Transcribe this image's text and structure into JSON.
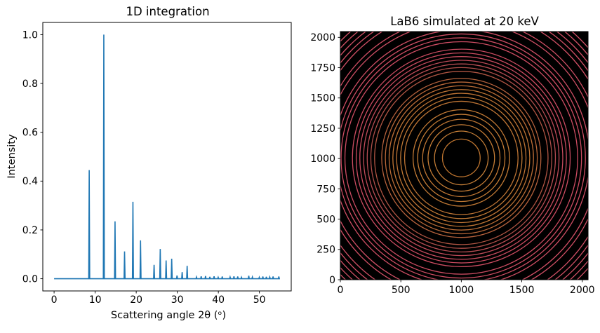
{
  "figure": {
    "background": "#ffffff",
    "text_color": "#000000"
  },
  "chart_data": [
    {
      "type": "line",
      "title": "1D integration",
      "xlabel": "Scattering angle 2θ (ᵒ)",
      "ylabel": "Intensity",
      "x_data_range": [
        0,
        55
      ],
      "xlim": [
        -2.75,
        57.75
      ],
      "ylim": [
        -0.05,
        1.05
      ],
      "xtick_values": [
        0,
        10,
        20,
        30,
        40,
        50
      ],
      "xtick_labels": [
        "0",
        "10",
        "20",
        "30",
        "40",
        "50"
      ],
      "ytick_values": [
        0.0,
        0.2,
        0.4,
        0.6,
        0.8,
        1.0
      ],
      "ytick_labels": [
        "0.0",
        "0.2",
        "0.4",
        "0.6",
        "0.8",
        "1.0"
      ],
      "grid": false,
      "line_color": "#1f77b4",
      "peaks_two_theta_intensity": [
        [
          8.55,
          0.445
        ],
        [
          12.11,
          1.0
        ],
        [
          14.84,
          0.235
        ],
        [
          17.16,
          0.112
        ],
        [
          19.2,
          0.315
        ],
        [
          21.05,
          0.157
        ],
        [
          24.35,
          0.057
        ],
        [
          25.85,
          0.122
        ],
        [
          27.28,
          0.075
        ],
        [
          28.64,
          0.082
        ],
        [
          29.94,
          0.013
        ],
        [
          31.19,
          0.027
        ],
        [
          32.4,
          0.053
        ],
        [
          34.67,
          0.007
        ],
        [
          35.82,
          0.01
        ],
        [
          36.88,
          0.011
        ],
        [
          37.93,
          0.008
        ],
        [
          38.96,
          0.01
        ],
        [
          39.96,
          0.006
        ],
        [
          40.95,
          0.009
        ],
        [
          42.86,
          0.007
        ],
        [
          43.8,
          0.01
        ],
        [
          44.72,
          0.009
        ],
        [
          45.63,
          0.006
        ],
        [
          47.41,
          0.012
        ],
        [
          48.29,
          0.007
        ],
        [
          49.97,
          0.006
        ],
        [
          50.84,
          0.009
        ],
        [
          51.69,
          0.008
        ],
        [
          52.52,
          0.007
        ],
        [
          53.33,
          0.009
        ],
        [
          54.73,
          0.009
        ]
      ]
    },
    {
      "type": "heatmap",
      "title": "LaB6 simulated at 20 keV",
      "extent": [
        0,
        2048,
        0,
        2048
      ],
      "xtick_values": [
        0,
        500,
        1000,
        1500,
        2000
      ],
      "xtick_labels": [
        "0",
        "500",
        "1000",
        "1500",
        "2000"
      ],
      "ytick_values": [
        0,
        250,
        500,
        750,
        1000,
        1250,
        1500,
        1750,
        2000
      ],
      "ytick_labels": [
        "0",
        "250",
        "500",
        "750",
        "1000",
        "1250",
        "1500",
        "1750",
        "2000"
      ],
      "background": "#000000",
      "beam_center": [
        1000,
        1005
      ],
      "rings_twotheta_radius_color": [
        [
          8.55,
          156,
          "#bd742f"
        ],
        [
          12.11,
          222,
          "#c88038"
        ],
        [
          14.84,
          275,
          "#c57d36"
        ],
        [
          17.16,
          320,
          "#c07734"
        ],
        [
          19.2,
          361,
          "#c57d36"
        ],
        [
          21.05,
          399,
          "#c27a35"
        ],
        [
          24.35,
          469,
          "#bd7434"
        ],
        [
          25.85,
          502,
          "#c27a36"
        ],
        [
          27.28,
          535,
          "#bd7334"
        ],
        [
          28.64,
          566,
          "#bf7535"
        ],
        [
          29.94,
          597,
          "#ba6c36"
        ],
        [
          31.19,
          628,
          "#b96839"
        ],
        [
          32.4,
          658,
          "#b5613c"
        ],
        [
          34.67,
          717,
          "#b05543"
        ],
        [
          35.82,
          748,
          "#ae4f4a"
        ],
        [
          36.88,
          778,
          "#b64d53"
        ],
        [
          37.93,
          808,
          "#bf4b59"
        ],
        [
          38.96,
          839,
          "#c84c5f"
        ],
        [
          39.96,
          869,
          "#cc4c61"
        ],
        [
          40.95,
          900,
          "#cc4c61"
        ],
        [
          42.86,
          962,
          "#ce4d63"
        ],
        [
          43.8,
          994,
          "#ce4d63"
        ],
        [
          44.72,
          1026,
          "#cf4e64"
        ],
        [
          45.63,
          1060,
          "#cf4e64"
        ],
        [
          47.41,
          1128,
          "#d04f65"
        ],
        [
          48.29,
          1163,
          "#d04f65"
        ],
        [
          49.97,
          1234,
          "#d15066"
        ],
        [
          50.84,
          1272,
          "#d15066"
        ],
        [
          51.69,
          1311,
          "#d25167"
        ],
        [
          52.52,
          1351,
          "#d25167"
        ],
        [
          53.33,
          1390,
          "#d25167"
        ]
      ]
    }
  ]
}
